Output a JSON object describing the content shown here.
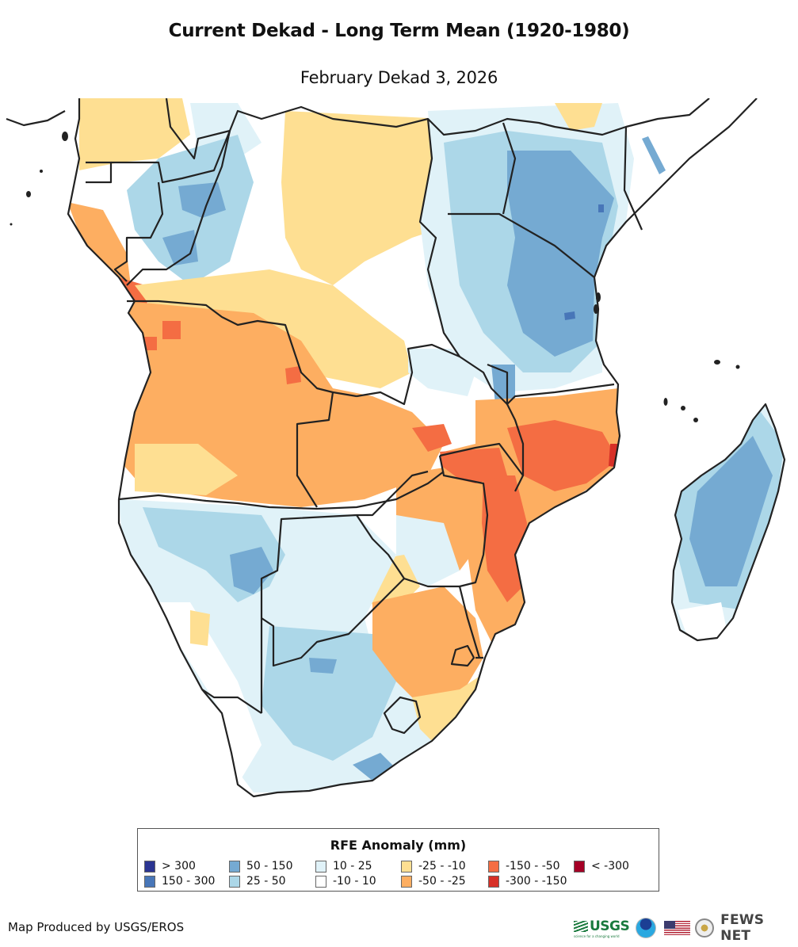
{
  "header": {
    "title": "Current Dekad - Long Term Mean (1920-1980)",
    "subtitle": "February Dekad 3, 2026"
  },
  "map": {
    "region": "Southern and Eastern Africa",
    "variable": "RFE Anomaly",
    "units": "mm",
    "colors": {
      "gt300": "#2b3592",
      "c150_300": "#4876b8",
      "c50_150": "#75aad2",
      "c25_50": "#acd7e8",
      "c10_25": "#e0f2f8",
      "neutral": "#ffffff",
      "m25_10": "#fedf92",
      "m50_25": "#fdae61",
      "m150_50": "#f46d43",
      "m300_150": "#d73027",
      "lt300": "#a50026",
      "border": "#222222",
      "water": "#ffffff"
    },
    "regions_summary": [
      {
        "area": "Kenya / Tanzania",
        "class": "50 - 150"
      },
      {
        "area": "Madagascar",
        "class": "50 - 150"
      },
      {
        "area": "Angola",
        "class": "-50 - -25"
      },
      {
        "area": "Zambia",
        "class": "-50 - -25"
      },
      {
        "area": "Mozambique / Malawi",
        "class": "-150 - -50"
      },
      {
        "area": "Namibia / South Africa",
        "class": "25 - 50"
      },
      {
        "area": "Congo basin",
        "class": "-25 - -10"
      },
      {
        "area": "Gabon / Congo",
        "class": "25 - 50"
      }
    ]
  },
  "legend": {
    "title": "RFE Anomaly (mm)",
    "items": [
      {
        "label": "> 300",
        "color": "#2b3592"
      },
      {
        "label": "150 - 300",
        "color": "#4876b8"
      },
      {
        "label": "50 - 150",
        "color": "#75aad2"
      },
      {
        "label": "25 - 50",
        "color": "#acd7e8"
      },
      {
        "label": "10 - 25",
        "color": "#e0f2f8"
      },
      {
        "label": "-10 - 10",
        "color": "#ffffff"
      },
      {
        "label": "-25 - -10",
        "color": "#fedf92"
      },
      {
        "label": "-50 - -25",
        "color": "#fdae61"
      },
      {
        "label": "-150 - -50",
        "color": "#f46d43"
      },
      {
        "label": "-300 - -150",
        "color": "#d73027"
      },
      {
        "label": "< -300",
        "color": "#a50026"
      }
    ]
  },
  "footer": {
    "credit": "Map Produced by USGS/EROS",
    "logos": {
      "usgs": "USGS",
      "usgs_tagline": "science for a changing world",
      "fews": "FEWS NET"
    }
  }
}
